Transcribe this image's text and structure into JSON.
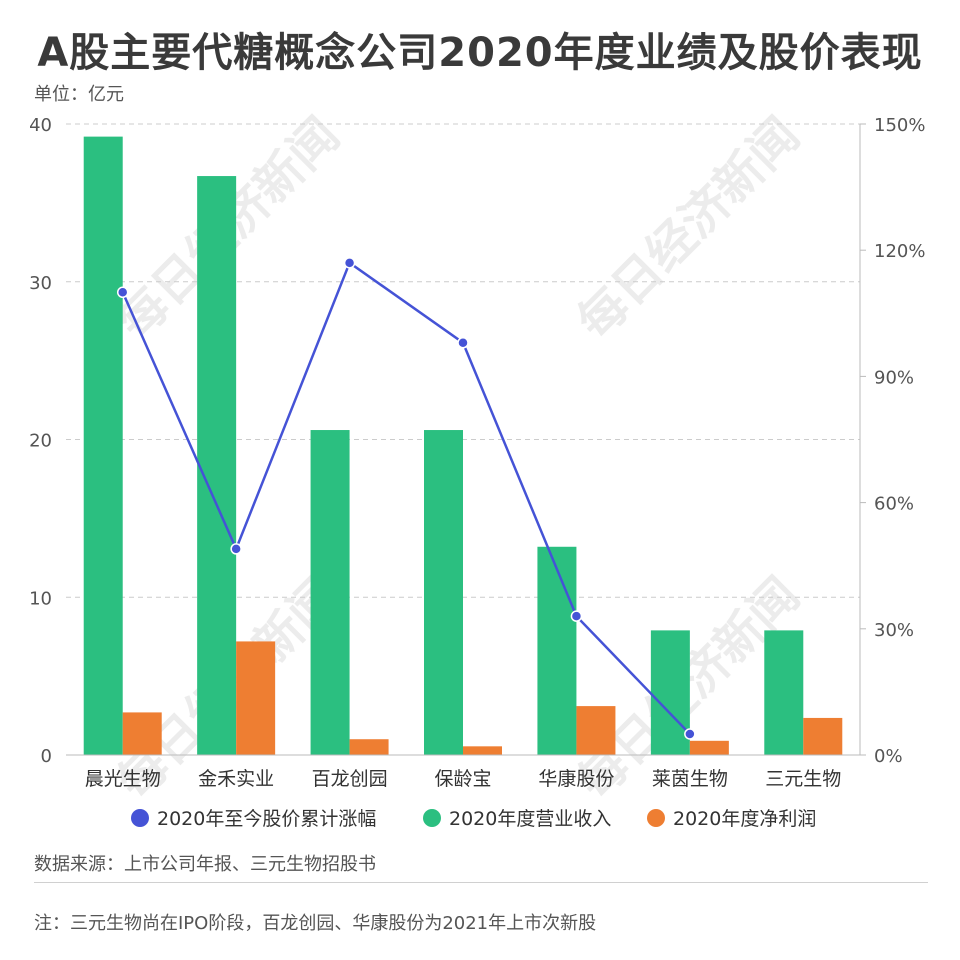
{
  "title": "A股主要代糖概念公司2020年度业绩及股价表现",
  "unit_label": "单位：亿元",
  "watermark_text": "每日经济新闻",
  "source": "数据来源：上市公司年报、三元生物招股书",
  "note": "注：三元生物尚在IPO阶段，百龙创园、华康股份为2021年上市次新股",
  "colors": {
    "revenue": "#2bbf80",
    "profit": "#ee7e32",
    "stock": "#4553d6",
    "grid": "#cccccc",
    "axis_text": "#555555"
  },
  "chart_data": {
    "type": "bar",
    "title": "A股主要代糖概念公司2020年度业绩及股价表现",
    "categories": [
      "晨光生物",
      "金禾实业",
      "百龙创园",
      "保龄宝",
      "华康股份",
      "莱茵生物",
      "三元生物"
    ],
    "y_left": {
      "ylim": [
        0,
        40
      ],
      "ticks": [
        "0",
        "10",
        "20",
        "30",
        "40"
      ]
    },
    "y_right": {
      "ylim": [
        0,
        150
      ],
      "ticks": [
        "0%",
        "30%",
        "60%",
        "90%",
        "120%",
        "150%"
      ]
    },
    "series": [
      {
        "name": "2020年至今股价累计涨幅",
        "type": "line",
        "axis": "right",
        "values": [
          110,
          49,
          117,
          98,
          33,
          5,
          null
        ]
      },
      {
        "name": "2020年度营业收入",
        "type": "bar",
        "axis": "left",
        "values": [
          39.2,
          36.7,
          20.6,
          20.6,
          13.2,
          7.9,
          7.9
        ]
      },
      {
        "name": "2020年度净利润",
        "type": "bar",
        "axis": "left",
        "values": [
          2.7,
          7.2,
          1.0,
          0.55,
          3.1,
          0.9,
          2.35
        ]
      }
    ],
    "grid": true,
    "legend_position": "bottom"
  }
}
